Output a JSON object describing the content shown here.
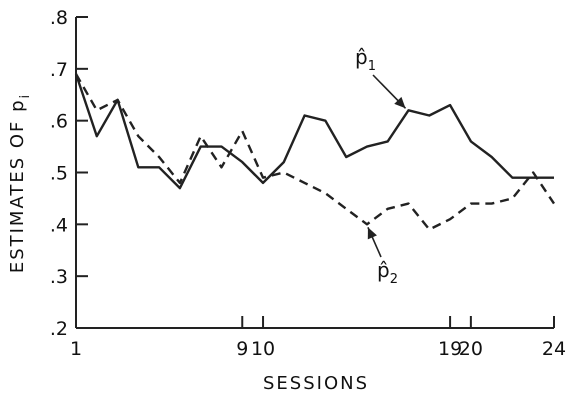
{
  "chart_data": {
    "type": "line",
    "title": "",
    "xlabel": "SESSIONS",
    "ylabel": "ESTIMATES OF p",
    "ylabel_subscript": "i",
    "xlim": [
      1,
      24
    ],
    "ylim": [
      0.2,
      0.8
    ],
    "x_ticks": [
      1,
      9,
      10,
      19,
      20,
      24
    ],
    "x_tick_labels": [
      "1",
      "9",
      "10",
      "19",
      "20",
      "24"
    ],
    "y_ticks": [
      0.2,
      0.3,
      0.4,
      0.5,
      0.6,
      0.7,
      0.8
    ],
    "y_tick_labels": [
      ".2",
      ".3",
      ".4",
      ".5",
      ".6",
      ".7",
      ".8"
    ],
    "grid": false,
    "legend": "none",
    "series": [
      {
        "label": "p̂",
        "label_subscript": "1",
        "style": "solid",
        "color": "#222222",
        "x": [
          1,
          2,
          3,
          4,
          5,
          6,
          7,
          8,
          9,
          10,
          11,
          12,
          13,
          14,
          15,
          16,
          17,
          18,
          19,
          20,
          21,
          22,
          23,
          24
        ],
        "y": [
          0.69,
          0.57,
          0.64,
          0.51,
          0.51,
          0.47,
          0.55,
          0.55,
          0.52,
          0.48,
          0.52,
          0.61,
          0.6,
          0.53,
          0.55,
          0.56,
          0.62,
          0.61,
          0.63,
          0.56,
          0.53,
          0.49,
          0.49,
          0.49
        ]
      },
      {
        "label": "p̂",
        "label_subscript": "2",
        "style": "dashed",
        "color": "#222222",
        "x": [
          1,
          2,
          3,
          4,
          5,
          6,
          7,
          8,
          9,
          10,
          11,
          12,
          13,
          14,
          15,
          16,
          17,
          18,
          19,
          20,
          21,
          22,
          23,
          24
        ],
        "y": [
          0.69,
          0.62,
          0.64,
          0.57,
          0.53,
          0.48,
          0.57,
          0.51,
          0.58,
          0.49,
          0.5,
          0.48,
          0.46,
          0.43,
          0.4,
          0.43,
          0.44,
          0.39,
          0.41,
          0.44,
          0.44,
          0.45,
          0.5,
          0.44
        ]
      }
    ],
    "annotations": [
      {
        "series": 0,
        "text": "p̂",
        "subscript": "1",
        "points_to_x": 17
      },
      {
        "series": 1,
        "text": "p̂",
        "subscript": "2",
        "points_to_x": 15
      }
    ]
  }
}
